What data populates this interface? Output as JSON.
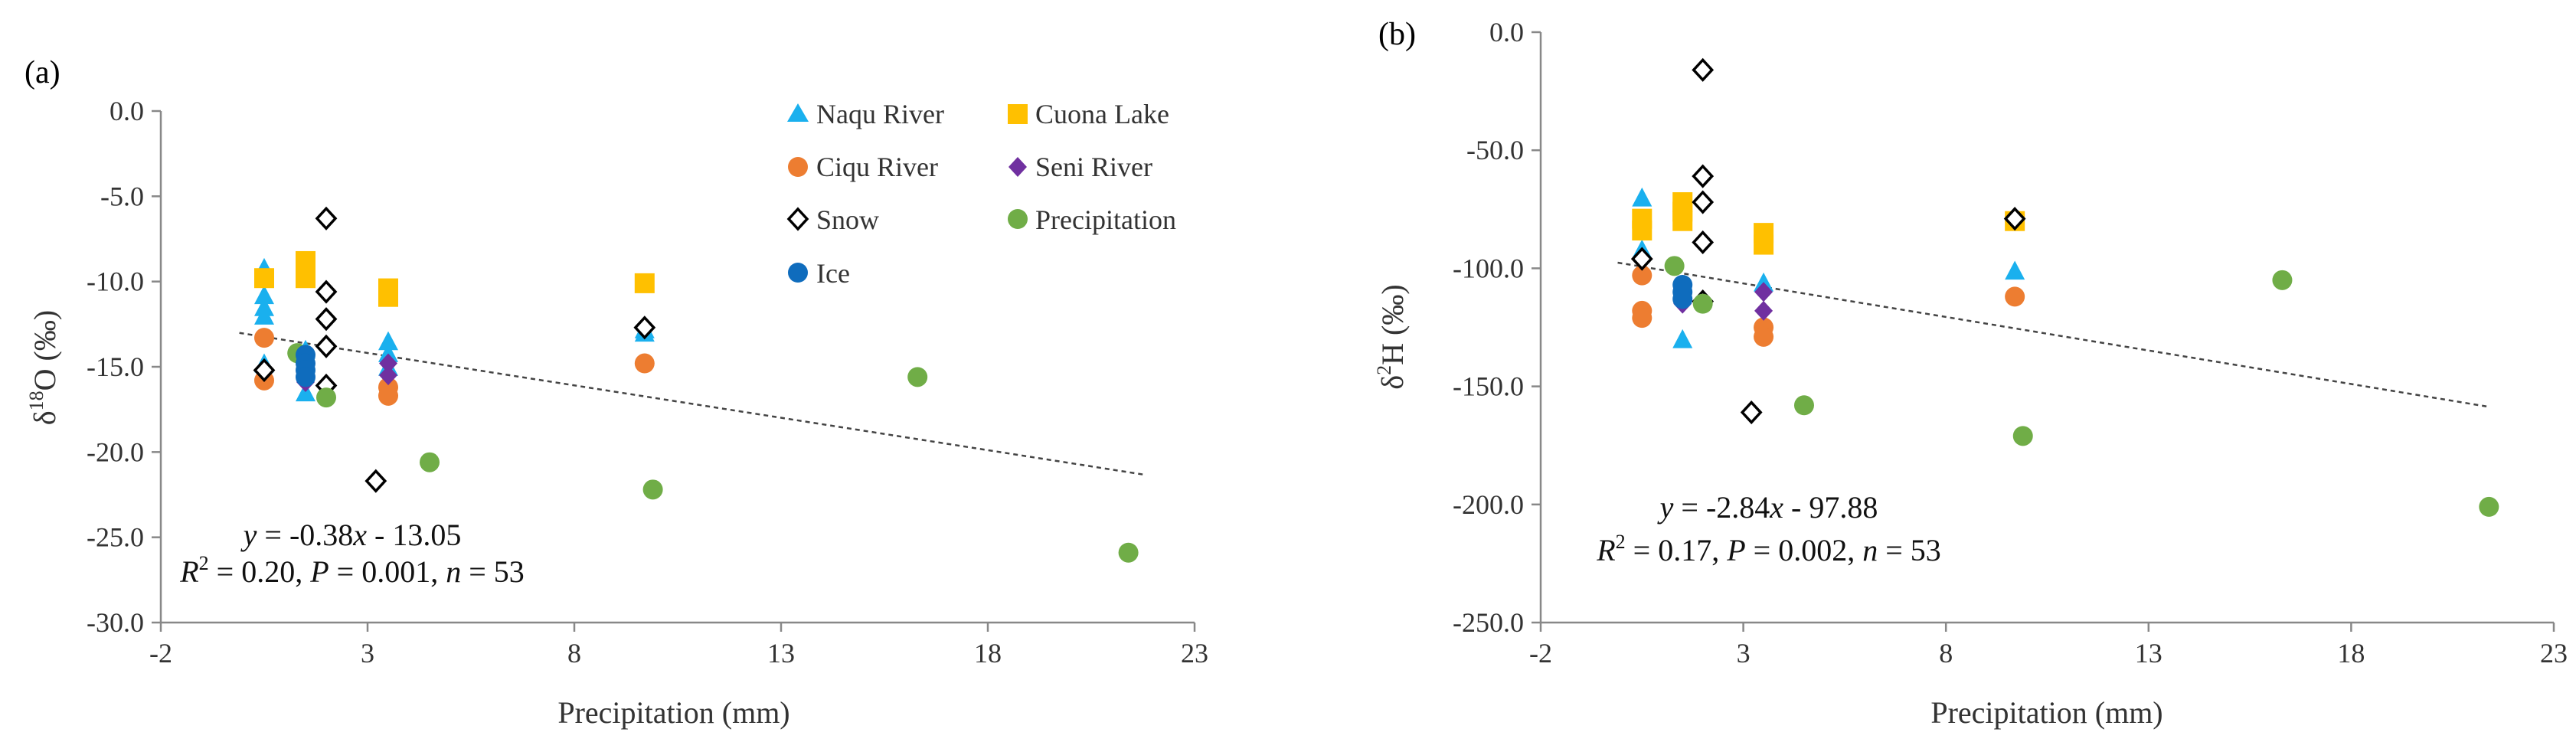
{
  "colors": {
    "naqu": "#1ab0ee",
    "cuona": "#ffc000",
    "ciqu": "#ed7d31",
    "seni": "#7030a0",
    "snow": "#000000",
    "precip": "#70ad47",
    "ice": "#0f6cbd",
    "trend": "#444444",
    "axis": "#888888"
  },
  "chart_data": [
    {
      "type": "scatter",
      "panel_label": "(a)",
      "xlabel": "Precipitation (mm)",
      "ylabel": "δ18O (‰)",
      "ylabel_main": "δ",
      "ylabel_sup": "18",
      "ylabel_rest": "O (‰)",
      "xlim": [
        -2,
        23
      ],
      "ylim": [
        -30,
        0
      ],
      "x_ticks": [
        -2,
        3,
        8,
        13,
        18,
        23
      ],
      "x_tick_labels": [
        "-2",
        "3",
        "8",
        "13",
        "18",
        "23"
      ],
      "y_ticks": [
        0,
        -5,
        -10,
        -15,
        -20,
        -25,
        -30
      ],
      "y_tick_labels": [
        "0.0",
        "-5.0",
        "-10.0",
        "-15.0",
        "-20.0",
        "-25.0",
        "-30.0"
      ],
      "trendline": {
        "x1": -0.1,
        "x2": 21.8,
        "slope": -0.38,
        "intercept": -13.05
      },
      "equation": "y = -0.38x - 13.05",
      "eq_y": "y",
      "eq_line1_rest": " = -0.38",
      "eq_x": "x",
      "eq_line1_tail": " - 13.05",
      "stats": "R2 = 0.20, P = 0.001, n = 53",
      "stats_R": "R",
      "stats_sup": "2",
      "stats_mid": " = 0.20, ",
      "stats_P": "P",
      "stats_mid2": " = 0.001, ",
      "stats_n": "n",
      "stats_tail": " = 53",
      "legend": [
        {
          "key": "naqu",
          "label": "Naqu River",
          "marker": "triangle"
        },
        {
          "key": "cuona",
          "label": "Cuona Lake",
          "marker": "square"
        },
        {
          "key": "ciqu",
          "label": "Ciqu River",
          "marker": "circle"
        },
        {
          "key": "seni",
          "label": "Seni River",
          "marker": "diamond"
        },
        {
          "key": "snow",
          "label": "Snow",
          "marker": "diamond-open"
        },
        {
          "key": "precip",
          "label": "Precipitation",
          "marker": "circle"
        },
        {
          "key": "ice",
          "label": "Ice",
          "marker": "circle"
        }
      ],
      "series": [
        {
          "key": "naqu",
          "name": "Naqu River",
          "marker": "triangle",
          "points": [
            [
              0.5,
              -9.2
            ],
            [
              0.5,
              -10.8
            ],
            [
              0.5,
              -11.5
            ],
            [
              0.5,
              -12.0
            ],
            [
              0.5,
              -14.8
            ],
            [
              1.5,
              -14.0
            ],
            [
              1.5,
              -16.5
            ],
            [
              3.5,
              -13.5
            ],
            [
              3.5,
              -14.2
            ],
            [
              3.5,
              -15.0
            ],
            [
              9.7,
              -12.8
            ],
            [
              9.7,
              -13.0
            ]
          ]
        },
        {
          "key": "cuona",
          "name": "Cuona Lake",
          "marker": "square",
          "points": [
            [
              0.5,
              -9.8
            ],
            [
              1.5,
              -8.8
            ],
            [
              1.5,
              -9.3
            ],
            [
              1.5,
              -9.8
            ],
            [
              3.5,
              -10.4
            ],
            [
              3.5,
              -10.9
            ],
            [
              9.7,
              -10.1
            ]
          ]
        },
        {
          "key": "ciqu",
          "name": "Ciqu River",
          "marker": "circle",
          "points": [
            [
              0.5,
              -13.3
            ],
            [
              0.5,
              -15.8
            ],
            [
              3.5,
              -16.2
            ],
            [
              3.5,
              -16.7
            ],
            [
              9.7,
              -14.8
            ]
          ]
        },
        {
          "key": "seni",
          "name": "Seni River",
          "marker": "diamond",
          "points": [
            [
              0.5,
              -15.2
            ],
            [
              1.5,
              -15.6
            ],
            [
              1.5,
              -15.9
            ],
            [
              3.5,
              -14.8
            ],
            [
              3.5,
              -15.5
            ]
          ]
        },
        {
          "key": "snow",
          "name": "Snow",
          "marker": "diamond-open",
          "points": [
            [
              0.5,
              -15.2
            ],
            [
              2.0,
              -6.3
            ],
            [
              2.0,
              -10.6
            ],
            [
              2.0,
              -12.2
            ],
            [
              2.0,
              -13.8
            ],
            [
              2.0,
              -16.1
            ],
            [
              3.2,
              -21.7
            ],
            [
              9.7,
              -12.7
            ]
          ]
        },
        {
          "key": "precip",
          "name": "Precipitation",
          "marker": "circle",
          "points": [
            [
              1.3,
              -14.2
            ],
            [
              2.0,
              -16.8
            ],
            [
              4.5,
              -20.6
            ],
            [
              9.9,
              -22.2
            ],
            [
              16.3,
              -15.6
            ],
            [
              21.4,
              -25.9
            ]
          ]
        },
        {
          "key": "ice",
          "name": "Ice",
          "marker": "circle",
          "points": [
            [
              1.5,
              -14.3
            ],
            [
              1.5,
              -14.8
            ],
            [
              1.5,
              -15.2
            ],
            [
              1.5,
              -15.6
            ]
          ]
        }
      ]
    },
    {
      "type": "scatter",
      "panel_label": "(b)",
      "xlabel": "Precipitation (mm)",
      "ylabel": "δ2H (‰)",
      "ylabel_main": "δ",
      "ylabel_sup": "2",
      "ylabel_rest": "H (‰)",
      "xlim": [
        -2,
        23
      ],
      "ylim": [
        -250,
        0
      ],
      "x_ticks": [
        -2,
        3,
        8,
        13,
        18,
        23
      ],
      "x_tick_labels": [
        "-2",
        "3",
        "8",
        "13",
        "18",
        "23"
      ],
      "y_ticks": [
        0,
        -50,
        -100,
        -150,
        -200,
        -250
      ],
      "y_tick_labels": [
        "0.0",
        "-50.0",
        "-100.0",
        "-150.0",
        "-200.0",
        "-250.0"
      ],
      "trendline": {
        "x1": -0.1,
        "x2": 21.4,
        "slope": -2.84,
        "intercept": -97.88
      },
      "equation": "y = -2.84x - 97.88",
      "eq_y": "y",
      "eq_line1_rest": " = -2.84",
      "eq_x": "x",
      "eq_line1_tail": " - 97.88",
      "stats": "R2 = 0.17, P = 0.002, n = 53",
      "stats_R": "R",
      "stats_sup": "2",
      "stats_mid": " = 0.17, ",
      "stats_P": "P",
      "stats_mid2": " = 0.002, ",
      "stats_n": "n",
      "stats_tail": " = 53",
      "series": [
        {
          "key": "naqu",
          "name": "Naqu River",
          "marker": "triangle",
          "points": [
            [
              0.5,
              -70
            ],
            [
              0.5,
              -92
            ],
            [
              1.5,
              -130
            ],
            [
              3.5,
              -106
            ],
            [
              9.7,
              -101
            ]
          ]
        },
        {
          "key": "cuona",
          "name": "Cuona Lake",
          "marker": "square",
          "points": [
            [
              0.5,
              -79
            ],
            [
              0.5,
              -84
            ],
            [
              1.5,
              -72
            ],
            [
              1.5,
              -76
            ],
            [
              1.5,
              -80
            ],
            [
              3.5,
              -85
            ],
            [
              3.5,
              -90
            ],
            [
              9.7,
              -80
            ]
          ]
        },
        {
          "key": "ciqu",
          "name": "Ciqu River",
          "marker": "circle",
          "points": [
            [
              0.5,
              -103
            ],
            [
              0.5,
              -118
            ],
            [
              0.5,
              -121
            ],
            [
              3.5,
              -125
            ],
            [
              3.5,
              -129
            ],
            [
              9.7,
              -112
            ]
          ]
        },
        {
          "key": "seni",
          "name": "Seni River",
          "marker": "diamond",
          "points": [
            [
              1.5,
              -112
            ],
            [
              1.5,
              -115
            ],
            [
              3.5,
              -110
            ],
            [
              3.5,
              -118
            ]
          ]
        },
        {
          "key": "snow",
          "name": "Snow",
          "marker": "diamond-open",
          "points": [
            [
              0.5,
              -96
            ],
            [
              2.0,
              -16
            ],
            [
              2.0,
              -61
            ],
            [
              2.0,
              -72
            ],
            [
              2.0,
              -89
            ],
            [
              2.0,
              -114
            ],
            [
              3.2,
              -161
            ],
            [
              9.7,
              -79
            ]
          ]
        },
        {
          "key": "precip",
          "name": "Precipitation",
          "marker": "circle",
          "points": [
            [
              1.3,
              -99
            ],
            [
              2.0,
              -115
            ],
            [
              4.5,
              -158
            ],
            [
              9.9,
              -171
            ],
            [
              16.3,
              -105
            ],
            [
              21.4,
              -201
            ]
          ]
        },
        {
          "key": "ice",
          "name": "Ice",
          "marker": "circle",
          "points": [
            [
              1.5,
              -107
            ],
            [
              1.5,
              -110
            ],
            [
              1.5,
              -113
            ]
          ]
        }
      ]
    }
  ]
}
